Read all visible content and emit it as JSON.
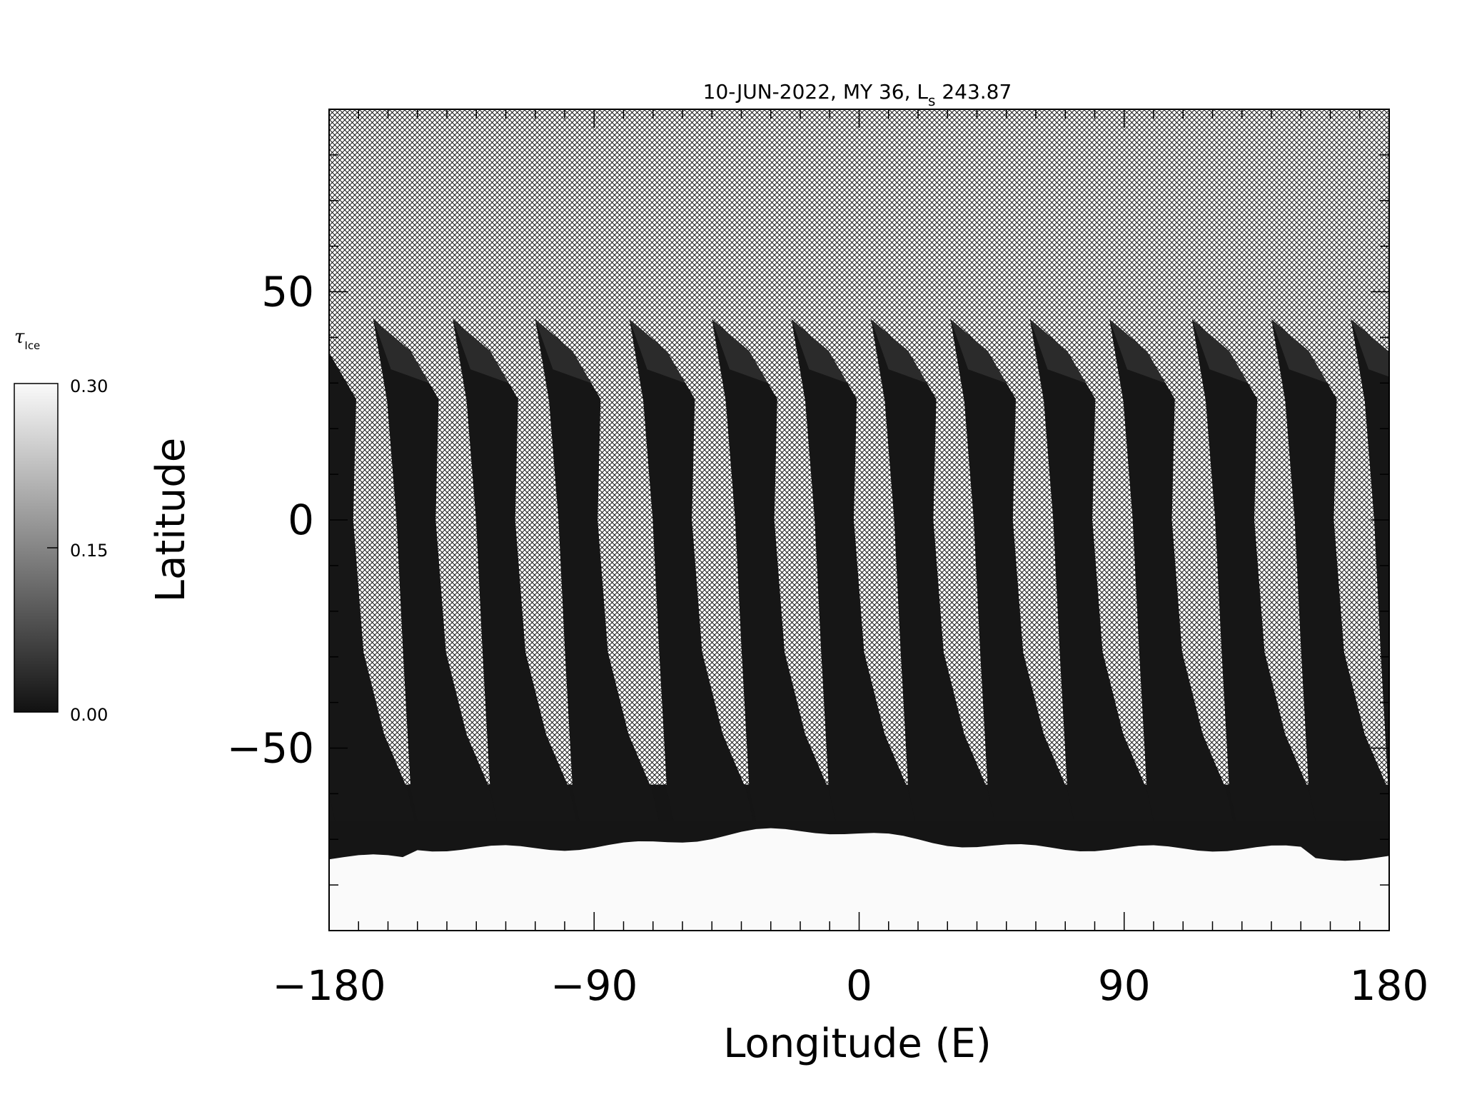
{
  "chart_data": {
    "type": "heatmap",
    "title": "10-JUN-2022, MY 36,  L",
    "title_subscript": "s",
    "title_suffix": " 243.87",
    "xlabel": "Longitude (E)",
    "ylabel": "Latitude",
    "xlim": [
      -180,
      180
    ],
    "ylim": [
      -90,
      90
    ],
    "xticks": [
      -180,
      -90,
      0,
      90,
      180
    ],
    "xtick_labels": [
      "−180",
      "−90",
      "0",
      "90",
      "180"
    ],
    "yticks": [
      -50,
      0,
      50
    ],
    "ytick_labels": [
      "−50",
      "0",
      "50"
    ],
    "minor_tick_step": 10,
    "grid": false,
    "colormap": "grayscale",
    "colorbar": {
      "label": "τ",
      "label_subscript": "Ice",
      "range": [
        0.0,
        0.3
      ],
      "tick_labels": [
        "0.30",
        "0.15",
        "0.00"
      ],
      "ticks": [
        0.3,
        0.15,
        0.0
      ],
      "low_color": "#111111",
      "high_color": "#fafafa"
    },
    "no_data": "cross-hatched",
    "swath_top_longitudes": [
      -165,
      -138,
      -110,
      -78,
      -50,
      -23,
      4,
      31,
      58,
      85,
      113,
      140,
      167
    ],
    "swath_top_latitude": 44,
    "polar_cap_edge_latitude": -72
  }
}
